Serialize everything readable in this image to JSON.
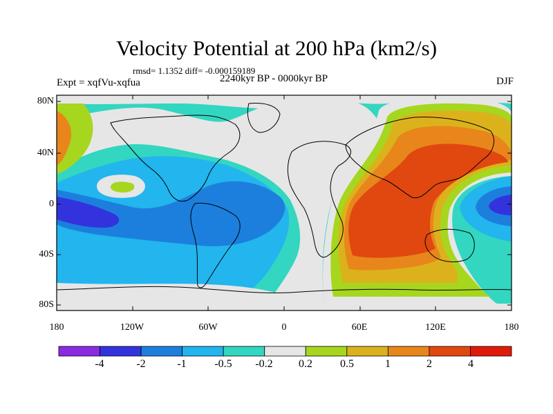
{
  "figure": {
    "title": "Velocity Potential at 200 hPa (km2/s)",
    "stats": "rmsd= 1.1352 diff= -0.000159189",
    "experiment": "Expt = xqfVu-xqfua",
    "period": "2240kyr BP - 0000kyr BP",
    "season": "DJF"
  },
  "axes": {
    "y_ticks": [
      "80N",
      "40N",
      "0",
      "40S",
      "80S"
    ],
    "x_ticks": [
      "180",
      "120W",
      "60W",
      "0",
      "60E",
      "120E",
      "180"
    ]
  },
  "colorbar": {
    "colors": [
      "#8a2be2",
      "#3333dd",
      "#1c7fdd",
      "#22b5ee",
      "#33d6c0",
      "#e6e6e6",
      "#a6d61e",
      "#dcb21c",
      "#e8861c",
      "#e0480f",
      "#e01a0a"
    ],
    "labels": [
      "-4",
      "-2",
      "-1",
      "-0.5",
      "-0.2",
      "0.2",
      "0.5",
      "1",
      "2",
      "4"
    ]
  }
}
